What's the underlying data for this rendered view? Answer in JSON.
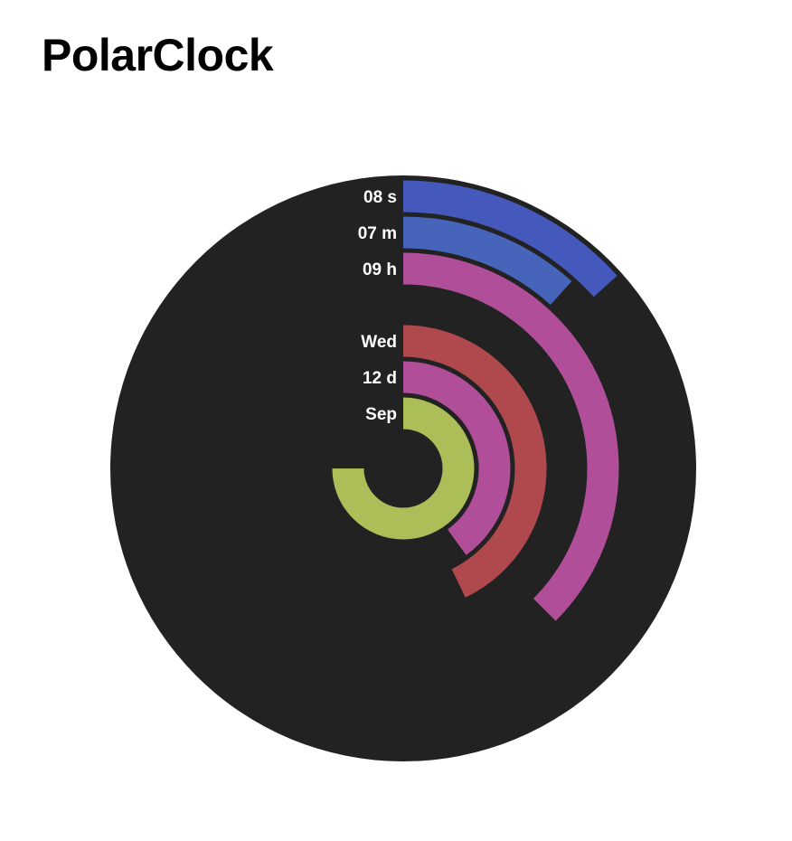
{
  "page": {
    "title": "PolarClock"
  },
  "chart_data": {
    "type": "polar-clock",
    "background_color": "#222222",
    "rings": [
      {
        "key": "seconds",
        "label": "08 s",
        "value": 8,
        "max": 60,
        "color": "#4559bd"
      },
      {
        "key": "minutes",
        "label": "07 m",
        "value": 7,
        "max": 60,
        "color": "#4665ba"
      },
      {
        "key": "hours",
        "label": "09 h",
        "value": 9,
        "max": 24,
        "color": "#b04e9a"
      },
      {
        "key": "weekday",
        "label": "Wed",
        "value": 3,
        "max": 7,
        "color": "#b0494d"
      },
      {
        "key": "day",
        "label": "12 d",
        "value": 12,
        "max": 30,
        "color": "#b04e9a"
      },
      {
        "key": "month",
        "label": "Sep",
        "value": 9,
        "max": 12,
        "color": "#abbe57"
      }
    ]
  }
}
